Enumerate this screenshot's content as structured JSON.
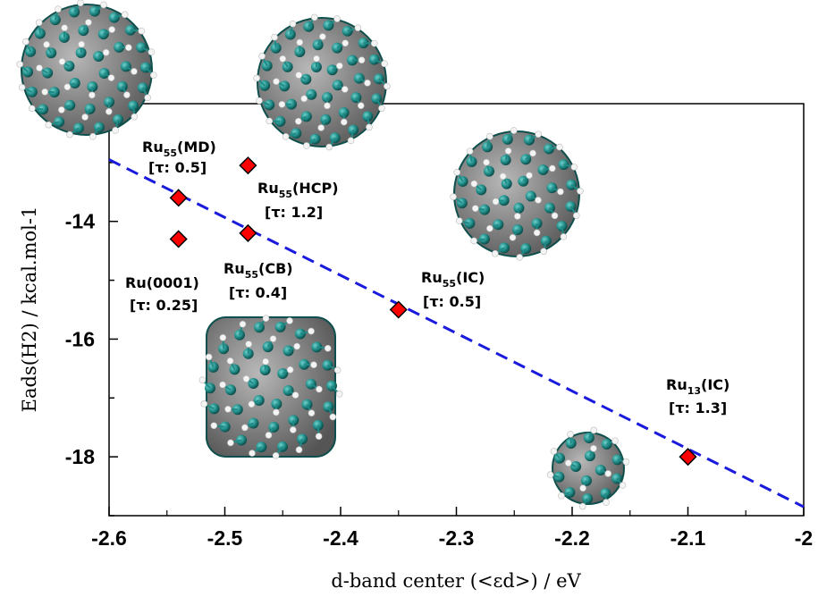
{
  "chart_data": {
    "type": "scatter",
    "title": "",
    "xlabel": "d-band center (<εd>) / eV",
    "ylabel": "Eads(H2) / kcal.mol-1",
    "xlim": [
      -2.6,
      -2.0
    ],
    "ylim": [
      -19.0,
      -12.0
    ],
    "grid": false,
    "x_ticks": [
      -2.6,
      -2.5,
      -2.4,
      -2.3,
      -2.2,
      -2.1,
      -2.0
    ],
    "x_tick_labels": [
      "-2.6",
      "-2.5",
      "-2.4",
      "-2.3",
      "-2.2",
      "-2.1",
      "-2"
    ],
    "y_ticks": [
      -14,
      -16,
      -18
    ],
    "y_tick_labels": [
      "-14",
      "-16",
      "-18"
    ],
    "marker_color": "#ff0000",
    "marker_edge_color": "#000000",
    "fit_line_color": "#1a1adc",
    "fit_line": {
      "style": "dashed",
      "x": [
        -2.6,
        -2.0
      ],
      "y": [
        -12.95,
        -18.85
      ]
    },
    "points": [
      {
        "name": "Ru(0001)",
        "tau": "[τ: 0.25]",
        "x": -2.54,
        "y": -14.3
      },
      {
        "name": "Ru55(MD)",
        "tau": "[τ: 0.5]",
        "x": -2.54,
        "y": -13.6
      },
      {
        "name": "Ru55(HCP)",
        "tau": "[τ: 1.2]",
        "x": -2.48,
        "y": -13.05
      },
      {
        "name": "Ru55(CB)",
        "tau": "[τ: 0.4]",
        "x": -2.48,
        "y": -14.2
      },
      {
        "name": "Ru55(IC)",
        "tau": "[τ: 0.5]",
        "x": -2.35,
        "y": -15.5
      },
      {
        "name": "Ru13(IC)",
        "tau": "[τ: 1.3]",
        "x": -2.1,
        "y": -18.0
      }
    ],
    "annotations": [
      {
        "base": "Ru",
        "sub": "55",
        "suffix": "(MD)",
        "tau": "[τ: 0.5]"
      },
      {
        "base": "Ru",
        "sub": "55",
        "suffix": "(HCP)",
        "tau": "[τ: 1.2]"
      },
      {
        "base": "Ru(0001)",
        "sub": "",
        "suffix": "",
        "tau": "[τ: 0.25]"
      },
      {
        "base": "Ru",
        "sub": "55",
        "suffix": "(CB)",
        "tau": "[τ: 0.4]"
      },
      {
        "base": "Ru",
        "sub": "55",
        "suffix": "(IC)",
        "tau": "[τ: 0.5]"
      },
      {
        "base": "Ru",
        "sub": "13",
        "suffix": "(IC)",
        "tau": "[τ: 1.3]"
      }
    ],
    "cluster_images": [
      {
        "kind": "Ru55(MD) cluster",
        "color": "#1f8a86"
      },
      {
        "kind": "Ru55(HCP) cluster",
        "color": "#1f8a86"
      },
      {
        "kind": "Ru55(IC) cluster",
        "color": "#1f8a86"
      },
      {
        "kind": "Ru55(CB) cluster",
        "color": "#1f8a86"
      },
      {
        "kind": "Ru13(IC) cluster",
        "color": "#1f8a86"
      }
    ]
  }
}
